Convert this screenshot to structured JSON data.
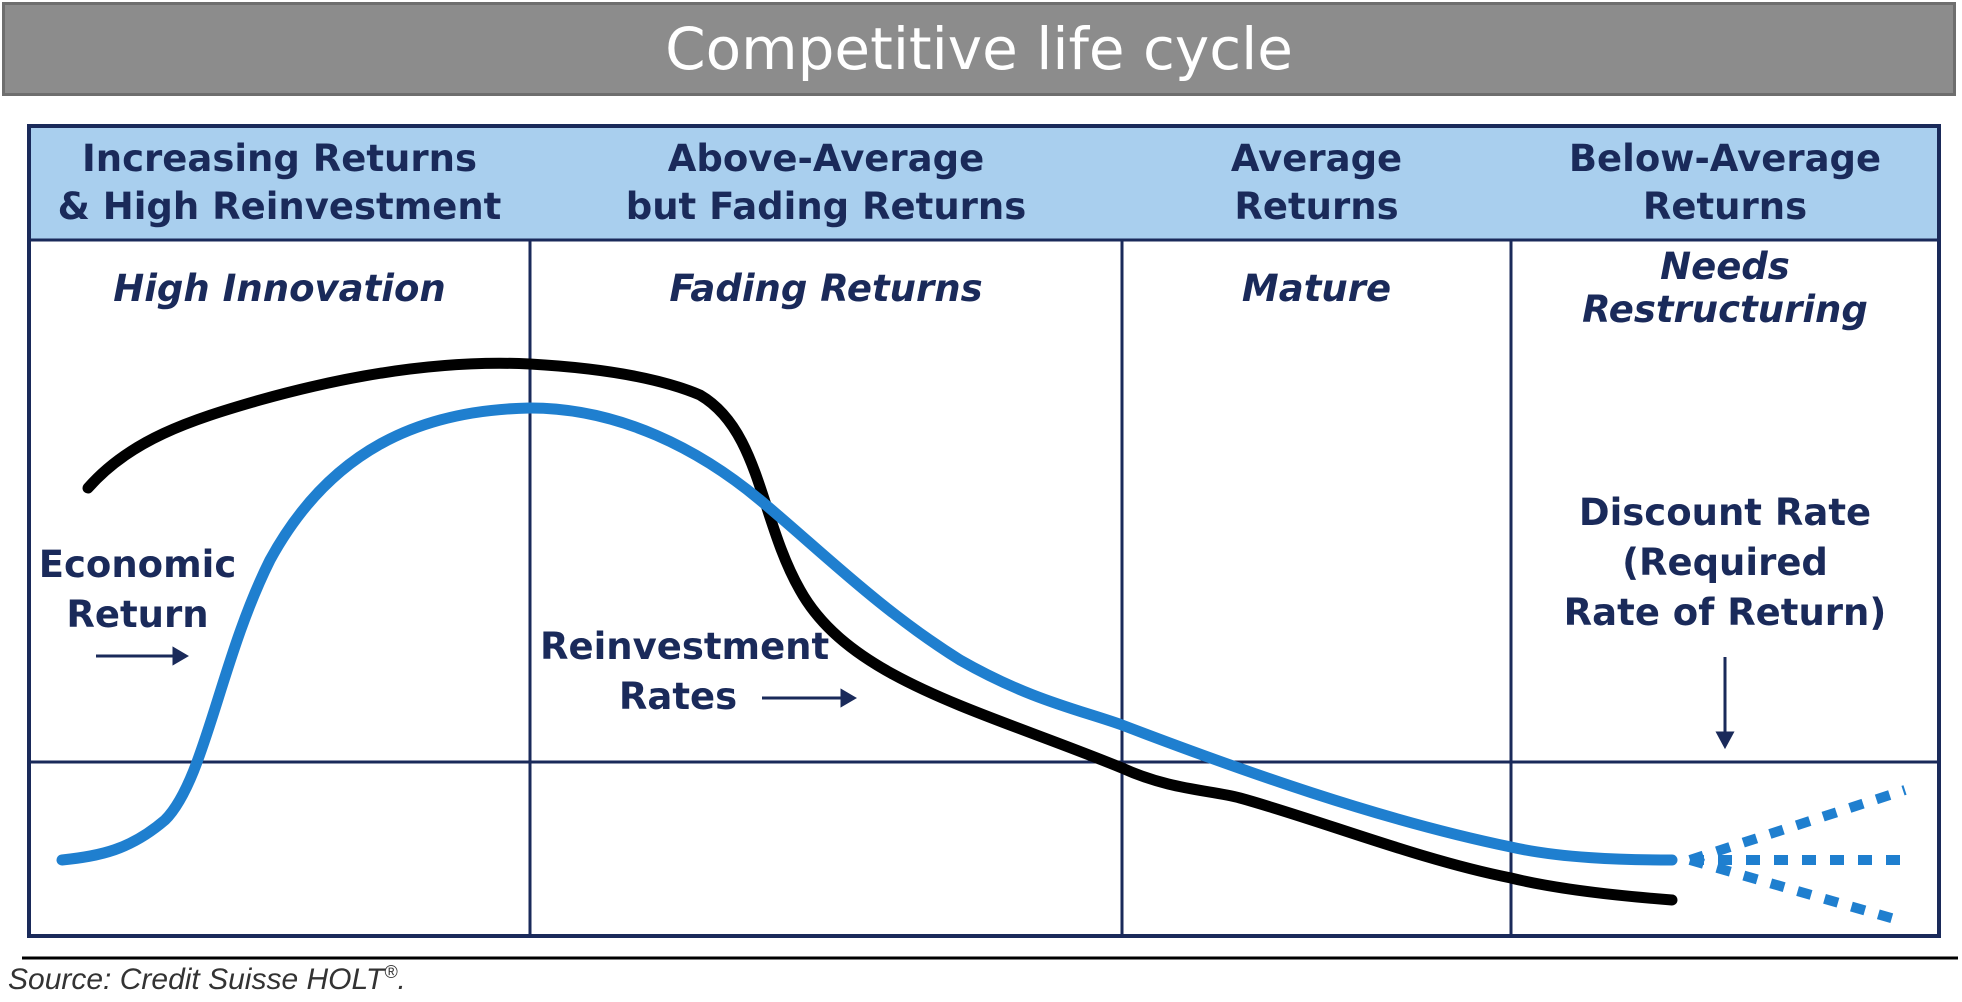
{
  "title": "Competitive life cycle",
  "stages": [
    {
      "header_lines": [
        "Increasing Returns",
        "& High Reinvestment"
      ],
      "subtitle": "High Innovation"
    },
    {
      "header_lines": [
        "Above-Average",
        "but Fading Returns"
      ],
      "subtitle": "Fading Returns"
    },
    {
      "header_lines": [
        "Average",
        "Returns"
      ],
      "subtitle": "Mature"
    },
    {
      "header_lines": [
        "Below-Average",
        "Returns"
      ],
      "subtitle": "Needs Restructuring"
    }
  ],
  "labels": {
    "economic_return": [
      "Economic",
      "Return"
    ],
    "reinvestment_rates": [
      "Reinvestment",
      "Rates"
    ],
    "discount_rate": [
      "Discount Rate",
      "(Required",
      "Rate of Return)"
    ]
  },
  "colors": {
    "header_fill": "#a9cfee",
    "grid_line": "#1a2a5a",
    "economic_return": "#1f7fcf",
    "reinvestment_rates": "#000000",
    "title_bar": "#8c8c8c"
  },
  "source": {
    "text": "Source: Credit Suisse HOLT",
    "mark": "®",
    "suffix": "."
  }
}
